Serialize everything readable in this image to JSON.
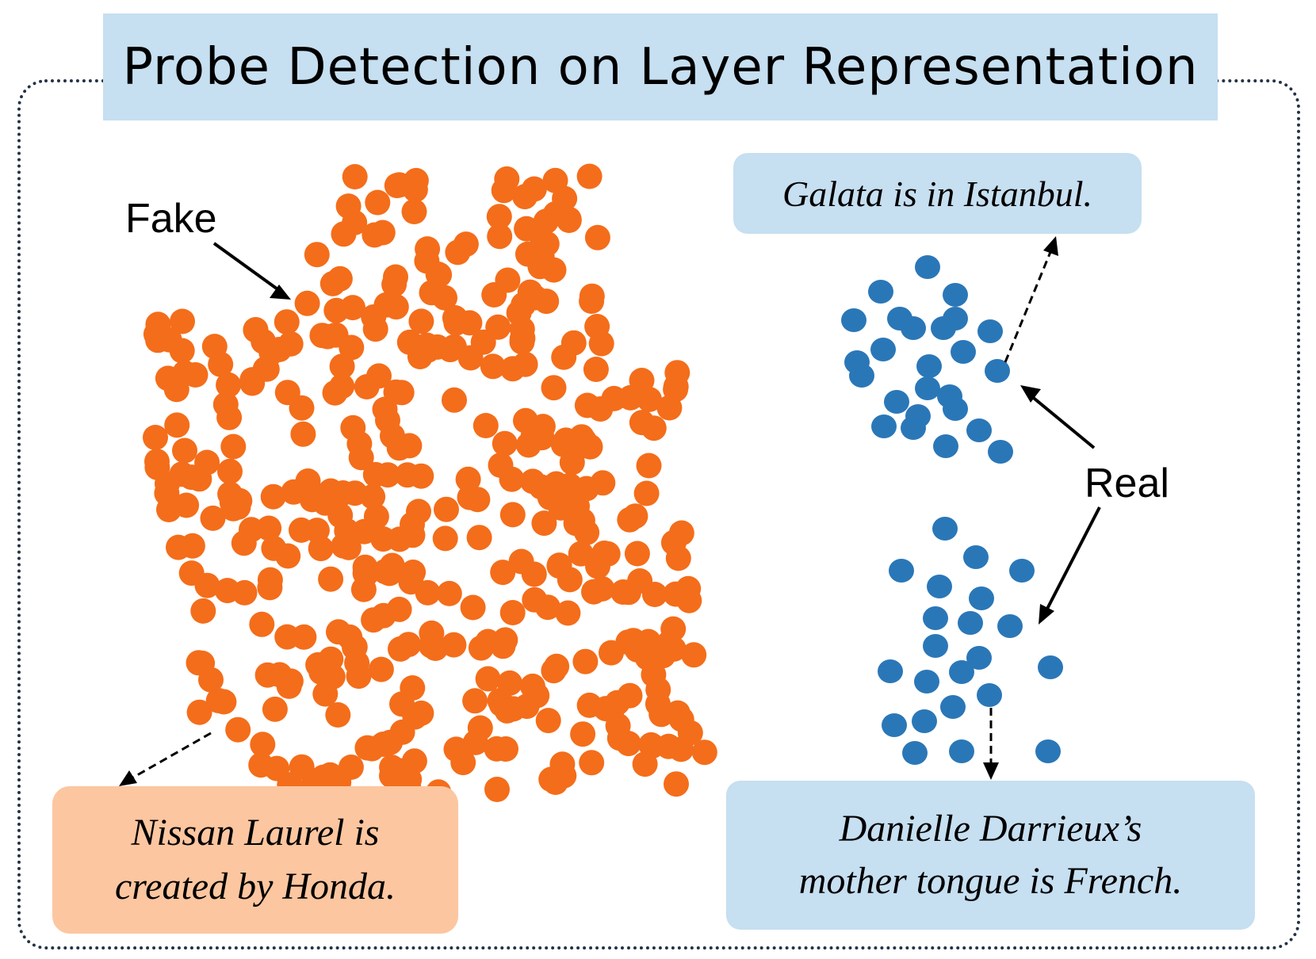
{
  "title": "Probe Detection on Layer Representation",
  "labels": {
    "fake": "Fake",
    "real": "Real"
  },
  "boxes": {
    "galata": "Galata is in Istanbul.",
    "nissan_line1": "Nissan Laurel is",
    "nissan_line2": "created by Honda.",
    "danielle_line1": "Danielle Darrieux’s",
    "danielle_line2": "mother tongue is French."
  },
  "colors": {
    "fake_points": "#f46d1a",
    "real_points": "#2a77b8",
    "title_bg": "#c6dff1",
    "real_box_bg": "#c6dff1",
    "fake_box_bg": "#fcc6a0",
    "frame": "#233246"
  }
}
